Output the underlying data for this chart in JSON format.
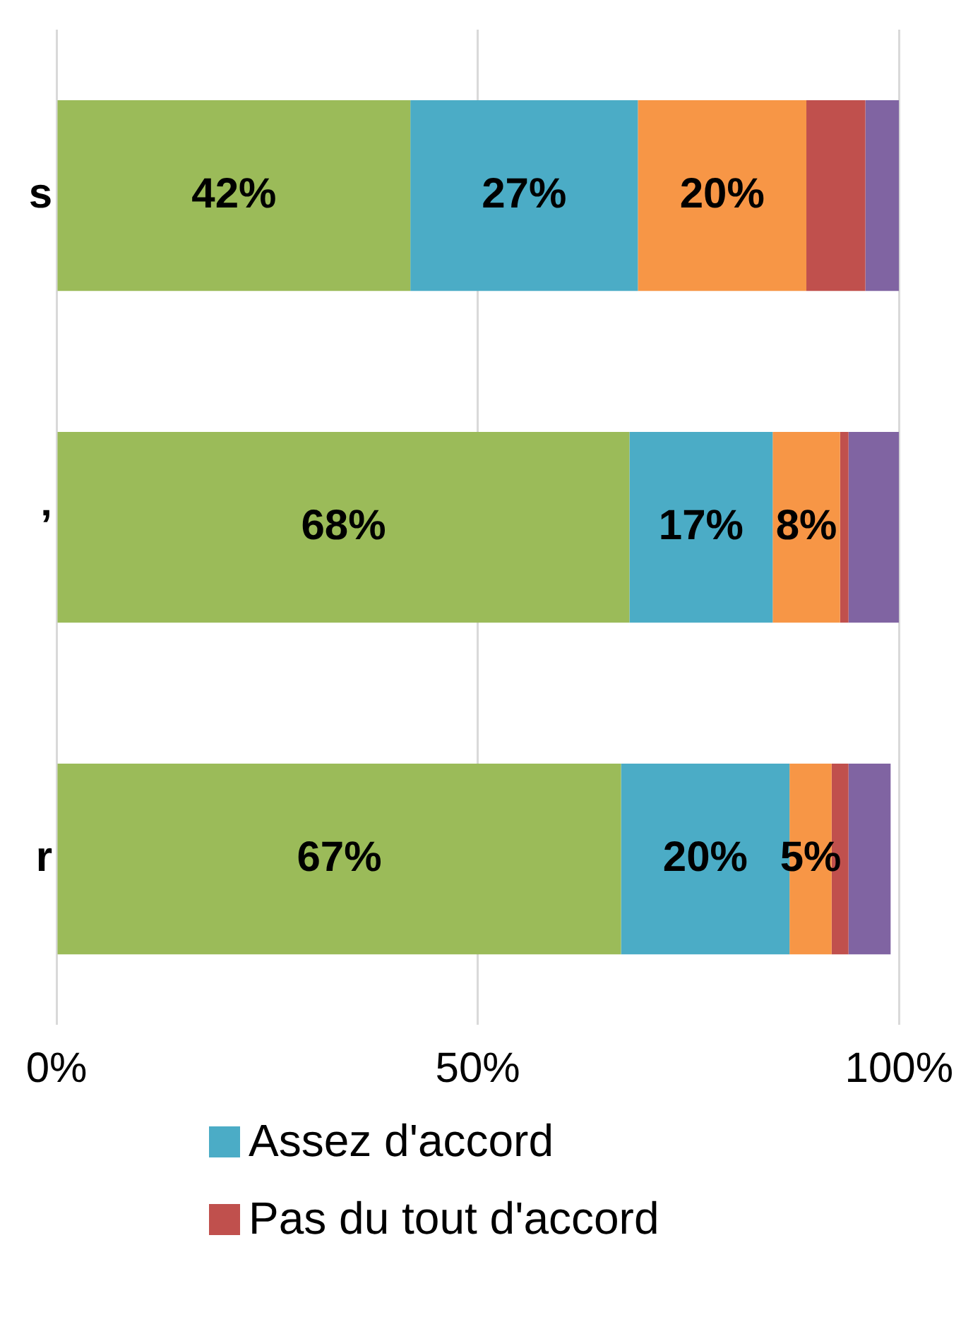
{
  "chart_data": {
    "type": "bar",
    "orientation": "horizontal",
    "stacked": true,
    "categories": [
      "s",
      "’",
      "r"
    ],
    "series": [
      {
        "color": "#9bbb59",
        "values": [
          42,
          68,
          67
        ],
        "value_labels": [
          "42%",
          "68%",
          "67%"
        ]
      },
      {
        "name": "Assez d'accord",
        "color": "#4bacc6",
        "values": [
          27,
          17,
          20
        ],
        "value_labels": [
          "27%",
          "17%",
          "20%"
        ]
      },
      {
        "color": "#f79646",
        "values": [
          20,
          8,
          5
        ],
        "value_labels": [
          "20%",
          "8%",
          "5%"
        ]
      },
      {
        "name": "Pas du tout d'accord",
        "color": "#c0504d",
        "values": [
          7,
          1,
          2
        ]
      },
      {
        "color": "#8064a2",
        "values": [
          4,
          6,
          5
        ]
      }
    ],
    "xlim": [
      0,
      100
    ],
    "xticks": [
      {
        "value": 0,
        "label": "0%"
      },
      {
        "value": 50,
        "label": "50%"
      },
      {
        "value": 100,
        "label": "100%"
      }
    ],
    "grid": "x",
    "legend": "bottom"
  }
}
